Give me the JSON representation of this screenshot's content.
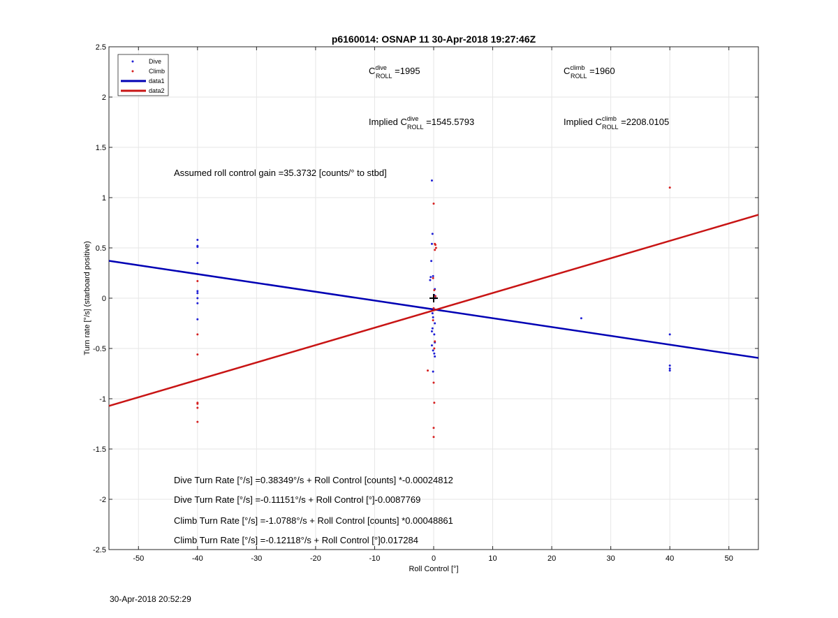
{
  "footer": {
    "timestamp": "30-Apr-2018 20:52:29"
  },
  "chart_data": {
    "type": "scatter",
    "title": "p6160014: OSNAP 11 30-Apr-2018 19:27:46Z",
    "xlabel": "Roll Control [°]",
    "ylabel": "Turn rate [°/s] (starboard positive)",
    "xlim": [
      -55,
      55
    ],
    "ylim": [
      -2.5,
      2.5
    ],
    "xticks": [
      -50,
      -40,
      -30,
      -20,
      -10,
      0,
      10,
      20,
      30,
      40,
      50
    ],
    "yticks": [
      -2.5,
      -2,
      -1.5,
      -1,
      -0.5,
      0,
      0.5,
      1,
      1.5,
      2,
      2.5
    ],
    "xtick_labels": [
      "-50",
      "-40",
      "-30",
      "-20",
      "-10",
      "0",
      "10",
      "20",
      "30",
      "40",
      "50"
    ],
    "ytick_labels": [
      "-2.5",
      "-2",
      "-1.5",
      "-1",
      "-0.5",
      "0",
      "0.5",
      "1",
      "1.5",
      "2",
      "2.5"
    ],
    "grid": true,
    "legend_position": "top-left",
    "series": [
      {
        "name": "Dive",
        "kind": "points",
        "color": "#1f1fd6",
        "x": [
          -40,
          -40,
          -40,
          -40,
          -40,
          -40,
          -40,
          -40,
          -40,
          -0.3,
          -0.2,
          -0.3,
          -0.4,
          -0.1,
          -0.5,
          -0.6,
          0.2,
          0.3,
          0.1,
          -0.2,
          -0.1,
          0.2,
          -0.2,
          -0.3,
          0.1,
          0.2,
          -0.3,
          -0.1,
          0.1,
          0.2,
          -0.1,
          25,
          40,
          40,
          40,
          40
        ],
        "y": [
          0.58,
          0.52,
          0.51,
          0.35,
          0.07,
          0.05,
          0.0,
          -0.05,
          -0.21,
          1.17,
          0.64,
          0.54,
          0.37,
          0.22,
          0.21,
          0.18,
          0.09,
          0.0,
          0.03,
          -0.15,
          -0.19,
          -0.25,
          -0.3,
          -0.33,
          -0.36,
          -0.44,
          -0.47,
          -0.52,
          -0.55,
          -0.58,
          -0.73,
          -0.2,
          -0.36,
          -0.67,
          -0.7,
          -0.72
        ]
      },
      {
        "name": "Climb",
        "kind": "points",
        "color": "#d61f1f",
        "x": [
          -40,
          -40,
          -40,
          -40,
          -40,
          -40,
          -40,
          0.0,
          0.2,
          0.3,
          0.4,
          0.2,
          -0.1,
          0.1,
          0.3,
          0.0,
          -0.1,
          0.2,
          -1.0,
          0.0,
          0.1,
          0.0,
          0.0,
          0.1,
          40
        ],
        "y": [
          0.17,
          -0.36,
          -0.56,
          -1.04,
          -1.05,
          -1.09,
          -1.23,
          0.94,
          0.54,
          0.53,
          0.5,
          0.48,
          0.2,
          0.08,
          0.02,
          -0.1,
          -0.22,
          -0.43,
          -0.72,
          -0.84,
          -1.04,
          -1.29,
          -1.38,
          -0.5,
          1.1
        ]
      },
      {
        "name": "data1",
        "kind": "line",
        "color": "#0000b4",
        "intercept": -0.11151,
        "slope": -0.0087769
      },
      {
        "name": "data2",
        "kind": "line",
        "color": "#c81414",
        "intercept": -0.12118,
        "slope": 0.017284
      }
    ],
    "origin_marker": {
      "x": 0,
      "y": 0,
      "symbol": "+"
    },
    "annotations": {
      "c_dive": {
        "base": "C",
        "sup": "dive",
        "sub": "ROLL",
        "value": " =1995"
      },
      "c_climb": {
        "base": "C",
        "sup": "climb",
        "sub": "ROLL",
        "value": " =1960"
      },
      "implied_dive": {
        "prefix": "Implied C",
        "sup": "dive",
        "sub": "ROLL",
        "value": " =1545.5793"
      },
      "implied_climb": {
        "prefix": "Implied C",
        "sup": "climb",
        "sub": "ROLL",
        "value": " =2208.0105"
      },
      "gain": "Assumed roll control gain =35.3732 [counts/° to stbd]",
      "eq_dive_counts": "Dive Turn Rate [°/s] =0.38349°/s + Roll Control [counts] *-0.00024812",
      "eq_dive_deg": "Dive Turn Rate [°/s] =-0.11151°/s + Roll Control [°]-0.0087769",
      "eq_climb_counts": "Climb Turn Rate [°/s] =-1.0788°/s + Roll Control [counts] *0.00048861",
      "eq_climb_deg": "Climb Turn Rate [°/s] =-0.12118°/s + Roll Control [°]0.017284"
    }
  }
}
